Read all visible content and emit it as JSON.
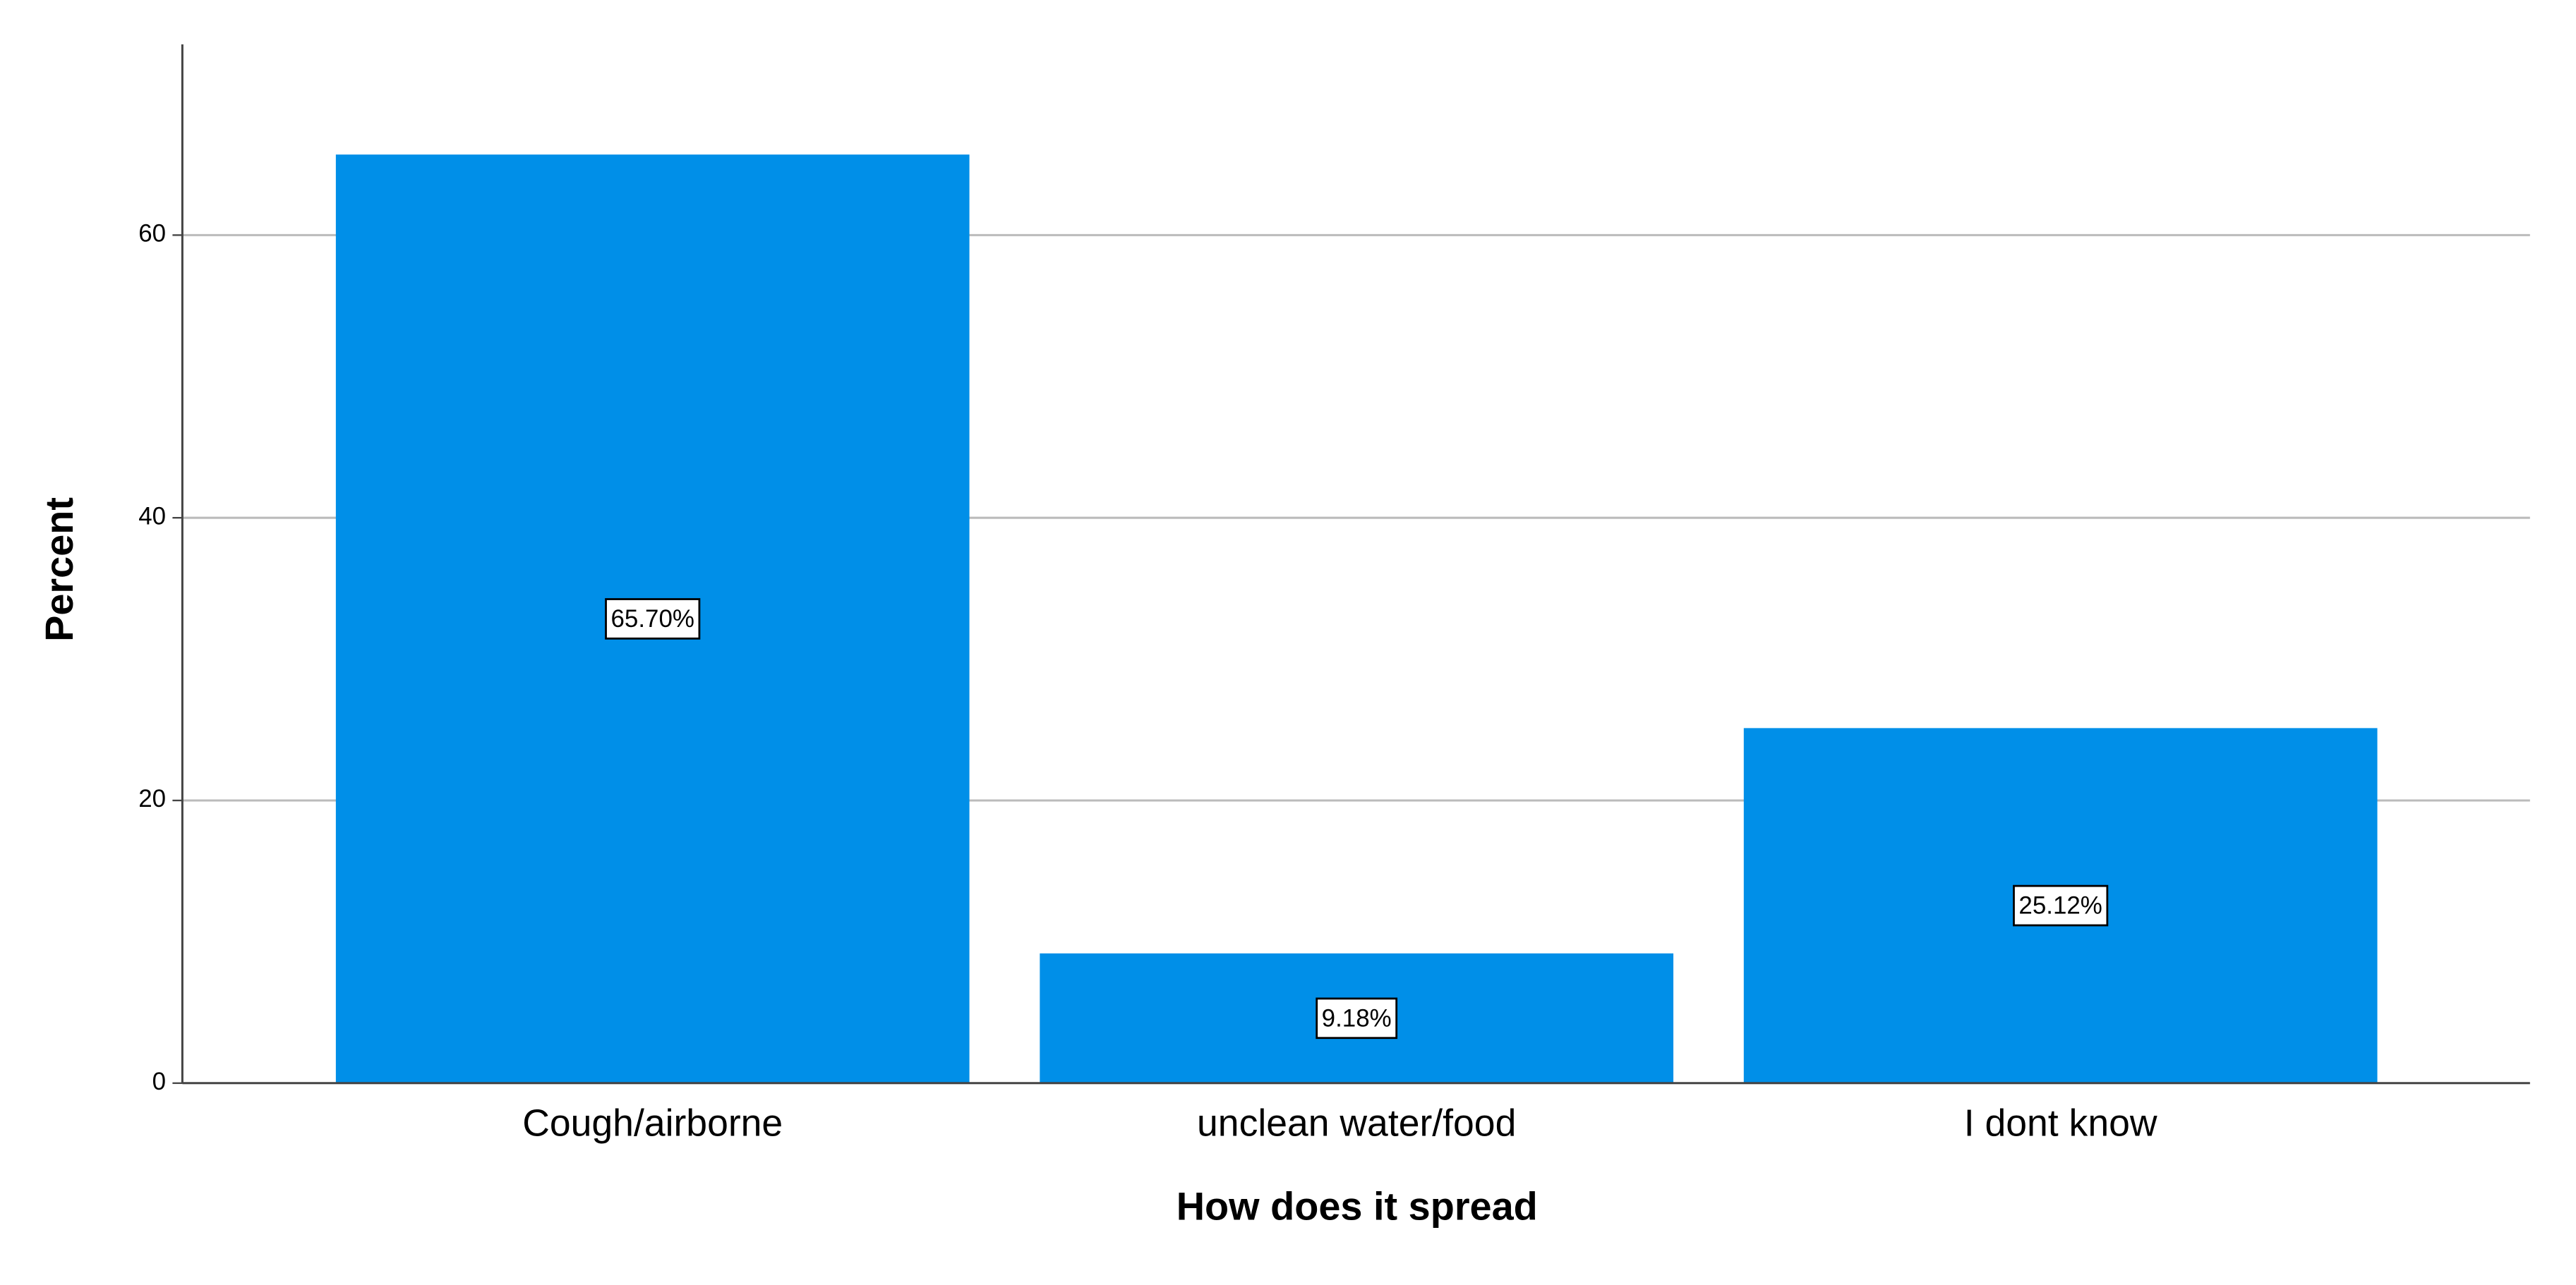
{
  "chart_data": {
    "type": "bar",
    "x_label": "How does it spread",
    "y_label": "Percent",
    "categories": [
      "Cough/airborne",
      "unclean water/food",
      "I dont know"
    ],
    "values": [
      65.7,
      9.18,
      25.12
    ],
    "value_labels": [
      "65.70%",
      "9.18%",
      "25.12%"
    ],
    "color": "#008fe8",
    "ylim": [
      0,
      73.5
    ],
    "yticks": [
      0,
      20,
      40,
      60
    ],
    "grid": true
  }
}
